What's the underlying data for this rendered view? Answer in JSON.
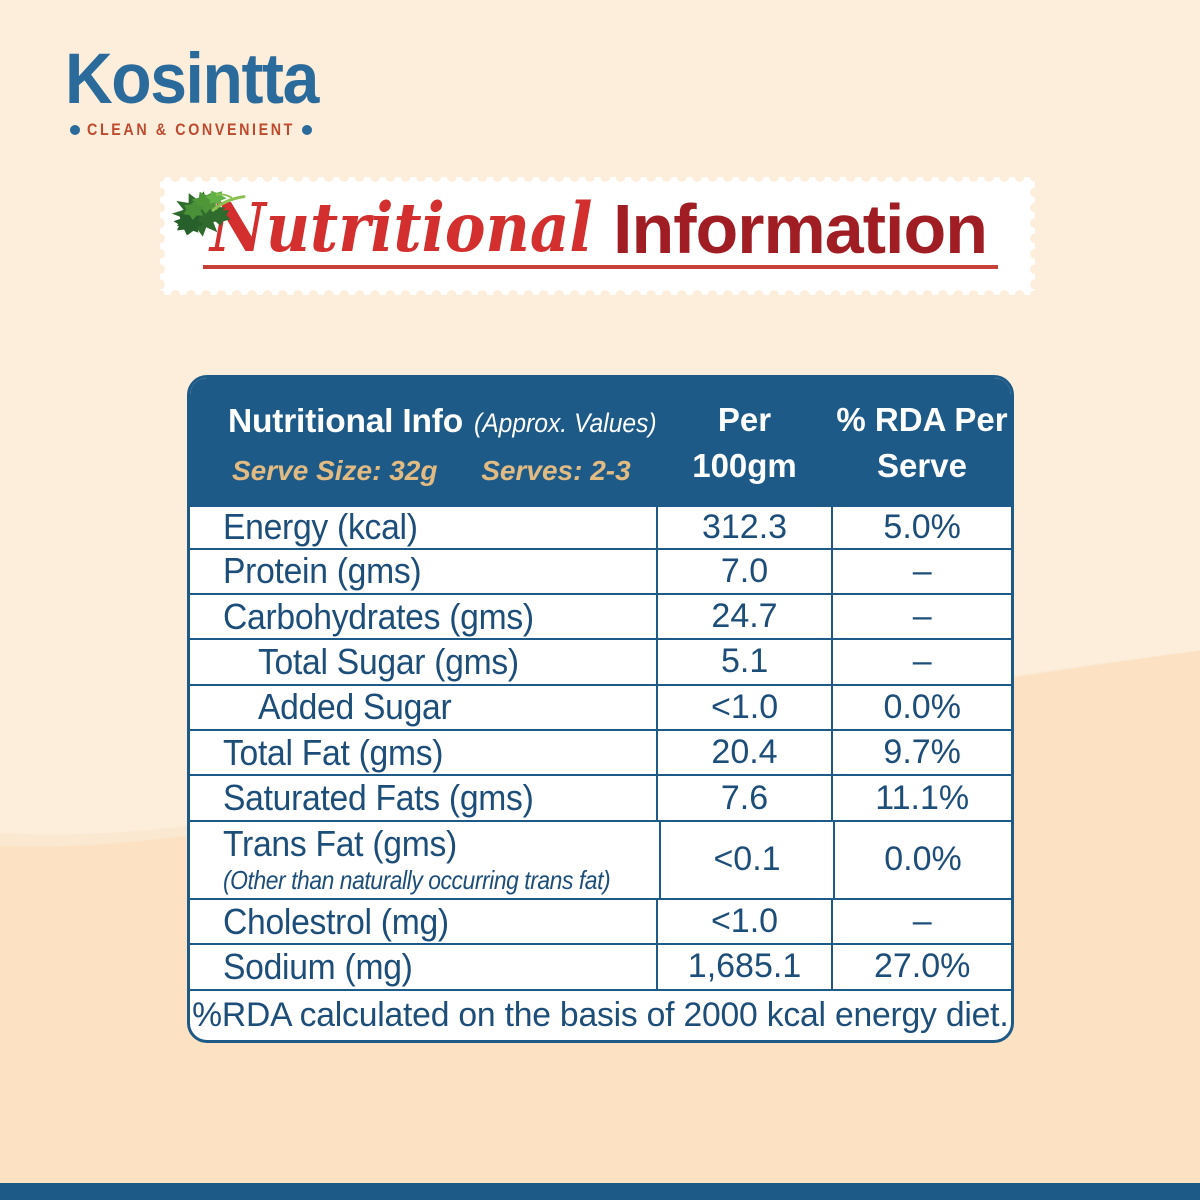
{
  "colors": {
    "background_top": "#fdeedc",
    "background_bottom": "#fce2c2",
    "background_mid_wave": "#fbe8d1",
    "blue": "#1e5a88",
    "text_blue": "#1d4e7a",
    "logo_blue": "#2a6b9b",
    "tagline_red": "#bf4a2e",
    "title_red": "#d22f2e",
    "title_maroon": "#a01d24",
    "underline_red": "#c84138",
    "gold": "#e2bb82",
    "stamp_white": "#ffffff",
    "leaf_green": "#4f9639"
  },
  "logo": {
    "brand": "Kosintta",
    "tagline": "CLEAN & CONVENIENT",
    "left_dot_icon": "dot",
    "right_dot_icon": "dot"
  },
  "title": {
    "word1": "Nutritional",
    "word2": "Information",
    "leaf_icon": "parsley-leaf"
  },
  "table": {
    "header": {
      "title": "Nutritional Info",
      "approx": "(Approx. Values)",
      "serve_size": "Serve Size: 32g",
      "serves": "Serves: 2-3",
      "col_per": "Per\n100gm",
      "col_rda": "% RDA Per\nServe"
    },
    "rows": [
      {
        "label": "Energy (kcal)",
        "indent": false,
        "note": "",
        "per100": "312.3",
        "rda": "5.0%"
      },
      {
        "label": "Protein (gms)",
        "indent": false,
        "note": "",
        "per100": "7.0",
        "rda": "–"
      },
      {
        "label": "Carbohydrates (gms)",
        "indent": false,
        "note": "",
        "per100": "24.7",
        "rda": "–"
      },
      {
        "label": "Total Sugar (gms)",
        "indent": true,
        "note": "",
        "per100": "5.1",
        "rda": "–"
      },
      {
        "label": "Added Sugar",
        "indent": true,
        "note": "",
        "per100": "<1.0",
        "rda": "0.0%"
      },
      {
        "label": "Total Fat (gms)",
        "indent": false,
        "note": "",
        "per100": "20.4",
        "rda": "9.7%"
      },
      {
        "label": "Saturated Fats (gms)",
        "indent": false,
        "note": "",
        "per100": "7.6",
        "rda": "11.1%"
      },
      {
        "label": "Trans Fat (gms)",
        "indent": false,
        "note": "(Other than naturally occurring trans fat)",
        "per100": "<0.1",
        "rda": "0.0%"
      },
      {
        "label": "Cholestrol (mg)",
        "indent": false,
        "note": "",
        "per100": "<1.0",
        "rda": "–"
      },
      {
        "label": "Sodium (mg)",
        "indent": false,
        "note": "",
        "per100": "1,685.1",
        "rda": "27.0%"
      }
    ],
    "footer": "%RDA calculated on the basis of 2000 kcal energy diet."
  }
}
